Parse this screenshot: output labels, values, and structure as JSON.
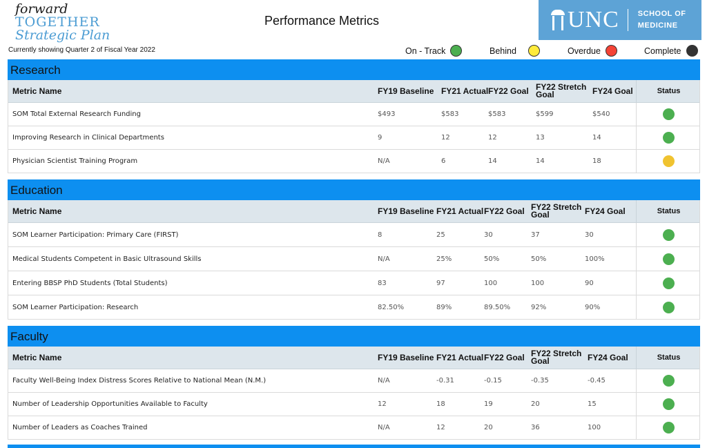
{
  "header": {
    "logo": {
      "line1": "forward",
      "line2": "TOGETHER",
      "line3": "Strategic Plan"
    },
    "title": "Performance Metrics",
    "brand": {
      "unc": "UNC",
      "school_line1": "SCHOOL OF",
      "school_line2": "MEDICINE",
      "bg_color": "#5da3d6"
    },
    "quarter_note": "Currently showing Quarter 2 of Fiscal Year 2022"
  },
  "legend": [
    {
      "label": "On - Track",
      "color": "#4caf50"
    },
    {
      "label": "Behind",
      "color": "#ffeb3b"
    },
    {
      "label": "Overdue",
      "color": "#f44336"
    },
    {
      "label": "Complete",
      "color": "#333333"
    }
  ],
  "colors": {
    "section_bar": "#0d8ff0",
    "header_row": "#dde6ec",
    "on_track": "#4caf50",
    "behind": "#f0c330"
  },
  "columns": {
    "metric": "Metric Name",
    "baseline": "FY19 Baseline",
    "fy21": "FY21 Actual",
    "fy22goal": "FY22 Goal",
    "stretch_line1": "FY22 Stretch",
    "stretch_line2": "Goal",
    "fy24": "FY24 Goal",
    "status": "Status"
  },
  "sections": [
    {
      "name": "Research",
      "rows": [
        {
          "metric": "SOM Total External Research Funding",
          "baseline": "$493",
          "fy21": "$583",
          "fy22goal": "$583",
          "stretch": "$599",
          "fy24": "$540",
          "status": "on-track"
        },
        {
          "metric": "Improving Research in Clinical Departments",
          "baseline": "9",
          "fy21": "12",
          "fy22goal": "12",
          "stretch": "13",
          "fy24": "14",
          "status": "on-track"
        },
        {
          "metric": "Physician Scientist Training Program",
          "baseline": "N/A",
          "fy21": "6",
          "fy22goal": "14",
          "stretch": "14",
          "fy24": "18",
          "status": "behind"
        }
      ]
    },
    {
      "name": "Education",
      "rows": [
        {
          "metric": "SOM Learner Participation: Primary Care (FIRST)",
          "baseline": "8",
          "fy21": "25",
          "fy22goal": "30",
          "stretch": "37",
          "fy24": "30",
          "status": "on-track"
        },
        {
          "metric": "Medical Students Competent in Basic Ultrasound Skills",
          "baseline": "N/A",
          "fy21": "25%",
          "fy22goal": "50%",
          "stretch": "50%",
          "fy24": "100%",
          "status": "on-track"
        },
        {
          "metric": "Entering BBSP PhD Students (Total Students)",
          "baseline": "83",
          "fy21": "97",
          "fy22goal": "100",
          "stretch": "100",
          "fy24": "90",
          "status": "on-track"
        },
        {
          "metric": "SOM Learner Participation: Research",
          "baseline": "82.50%",
          "fy21": "89%",
          "fy22goal": "89.50%",
          "stretch": "92%",
          "fy24": "90%",
          "status": "on-track"
        }
      ]
    },
    {
      "name": "Faculty",
      "rows": [
        {
          "metric": "Faculty Well-Being Index Distress Scores Relative to National Mean (N.M.)",
          "baseline": "N/A",
          "fy21": "-0.31",
          "fy22goal": "-0.15",
          "stretch": "-0.35",
          "fy24": "-0.45",
          "status": "on-track"
        },
        {
          "metric": "Number of Leadership Opportunities Available to Faculty",
          "baseline": "12",
          "fy21": "18",
          "fy22goal": "19",
          "stretch": "20",
          "fy24": "15",
          "status": "on-track"
        },
        {
          "metric": "Number of Leaders as Coaches Trained",
          "baseline": "N/A",
          "fy21": "12",
          "fy22goal": "20",
          "stretch": "36",
          "fy24": "100",
          "status": "on-track"
        }
      ]
    }
  ]
}
